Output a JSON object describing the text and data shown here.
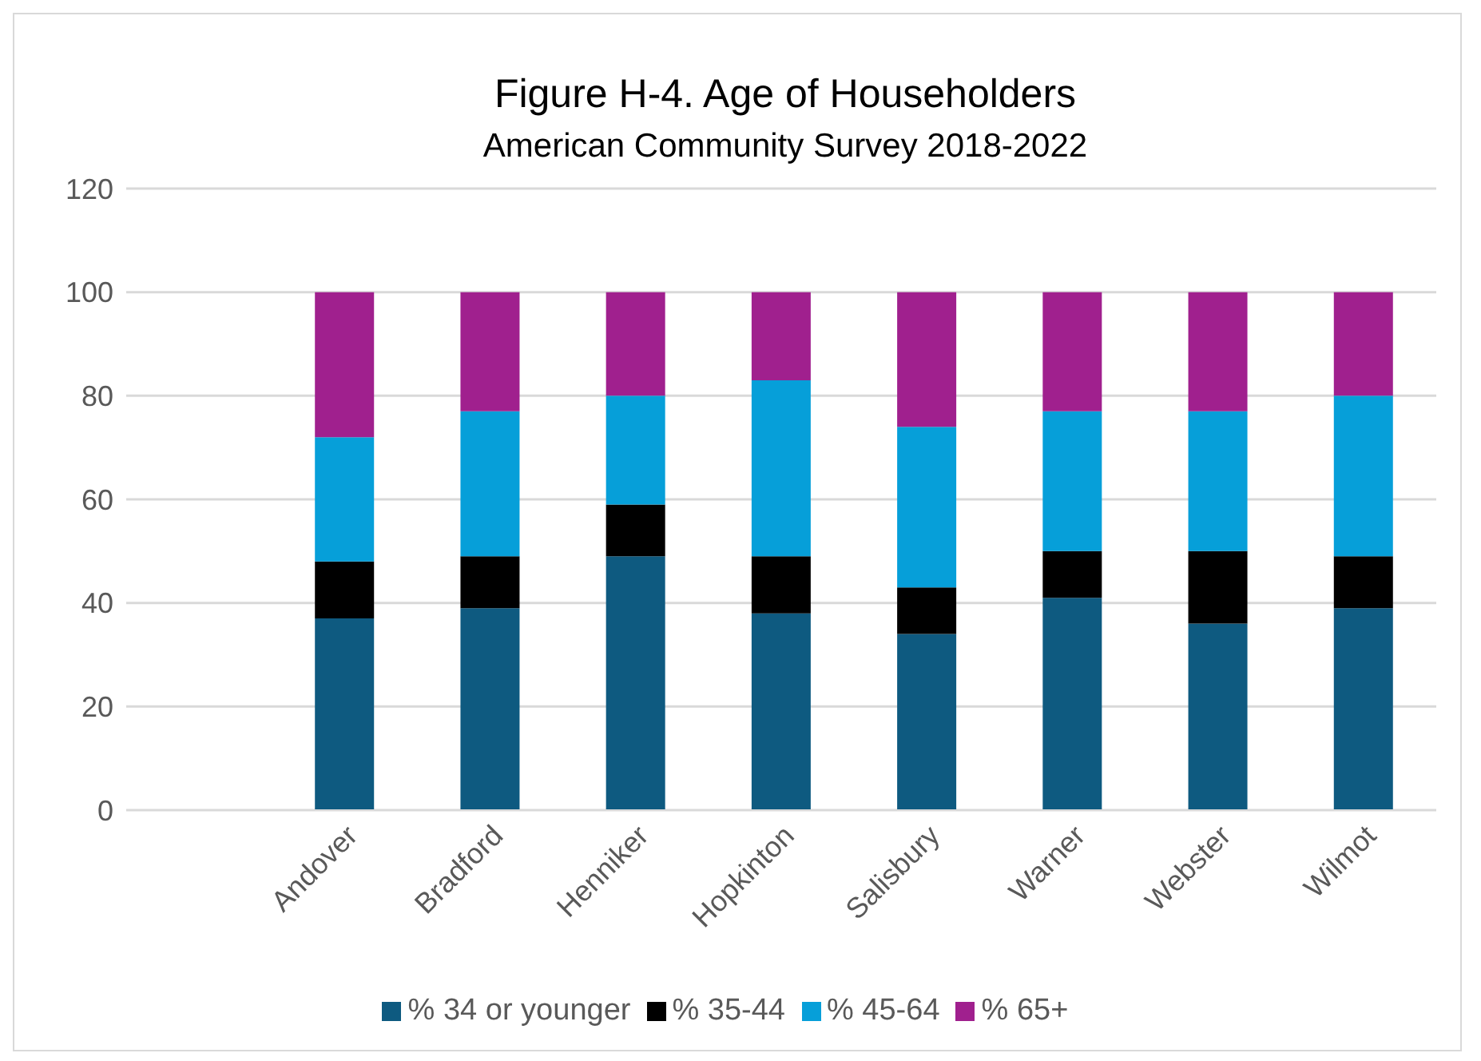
{
  "chart_data": {
    "type": "bar",
    "title": "Figure H-4. Age of Householders",
    "subtitle": "American Community Survey 2018-2022",
    "categories": [
      null,
      "Andover",
      "Bradford",
      "Henniker",
      "Hopkinton",
      "Salisbury",
      "Warner",
      "Webster",
      "Wilmot"
    ],
    "stacked": true,
    "series": [
      {
        "name": "% 34 or younger",
        "color": "#0e5a80",
        "values": [
          null,
          37,
          39,
          49,
          38,
          34,
          41,
          36,
          39
        ]
      },
      {
        "name": "% 35-44",
        "color": "#000000",
        "values": [
          null,
          11,
          10,
          10,
          11,
          9,
          9,
          14,
          10
        ]
      },
      {
        "name": "% 45-64",
        "color": "#069fd9",
        "values": [
          null,
          24,
          28,
          21,
          34,
          31,
          27,
          27,
          31
        ]
      },
      {
        "name": "% 65+",
        "color": "#a0208e",
        "values": [
          null,
          28,
          23,
          20,
          17,
          26,
          23,
          23,
          20
        ]
      }
    ],
    "ylim": [
      0,
      120
    ],
    "yticks": [
      0,
      20,
      40,
      60,
      80,
      100,
      120
    ],
    "grid": "y",
    "legend": "bottom"
  }
}
